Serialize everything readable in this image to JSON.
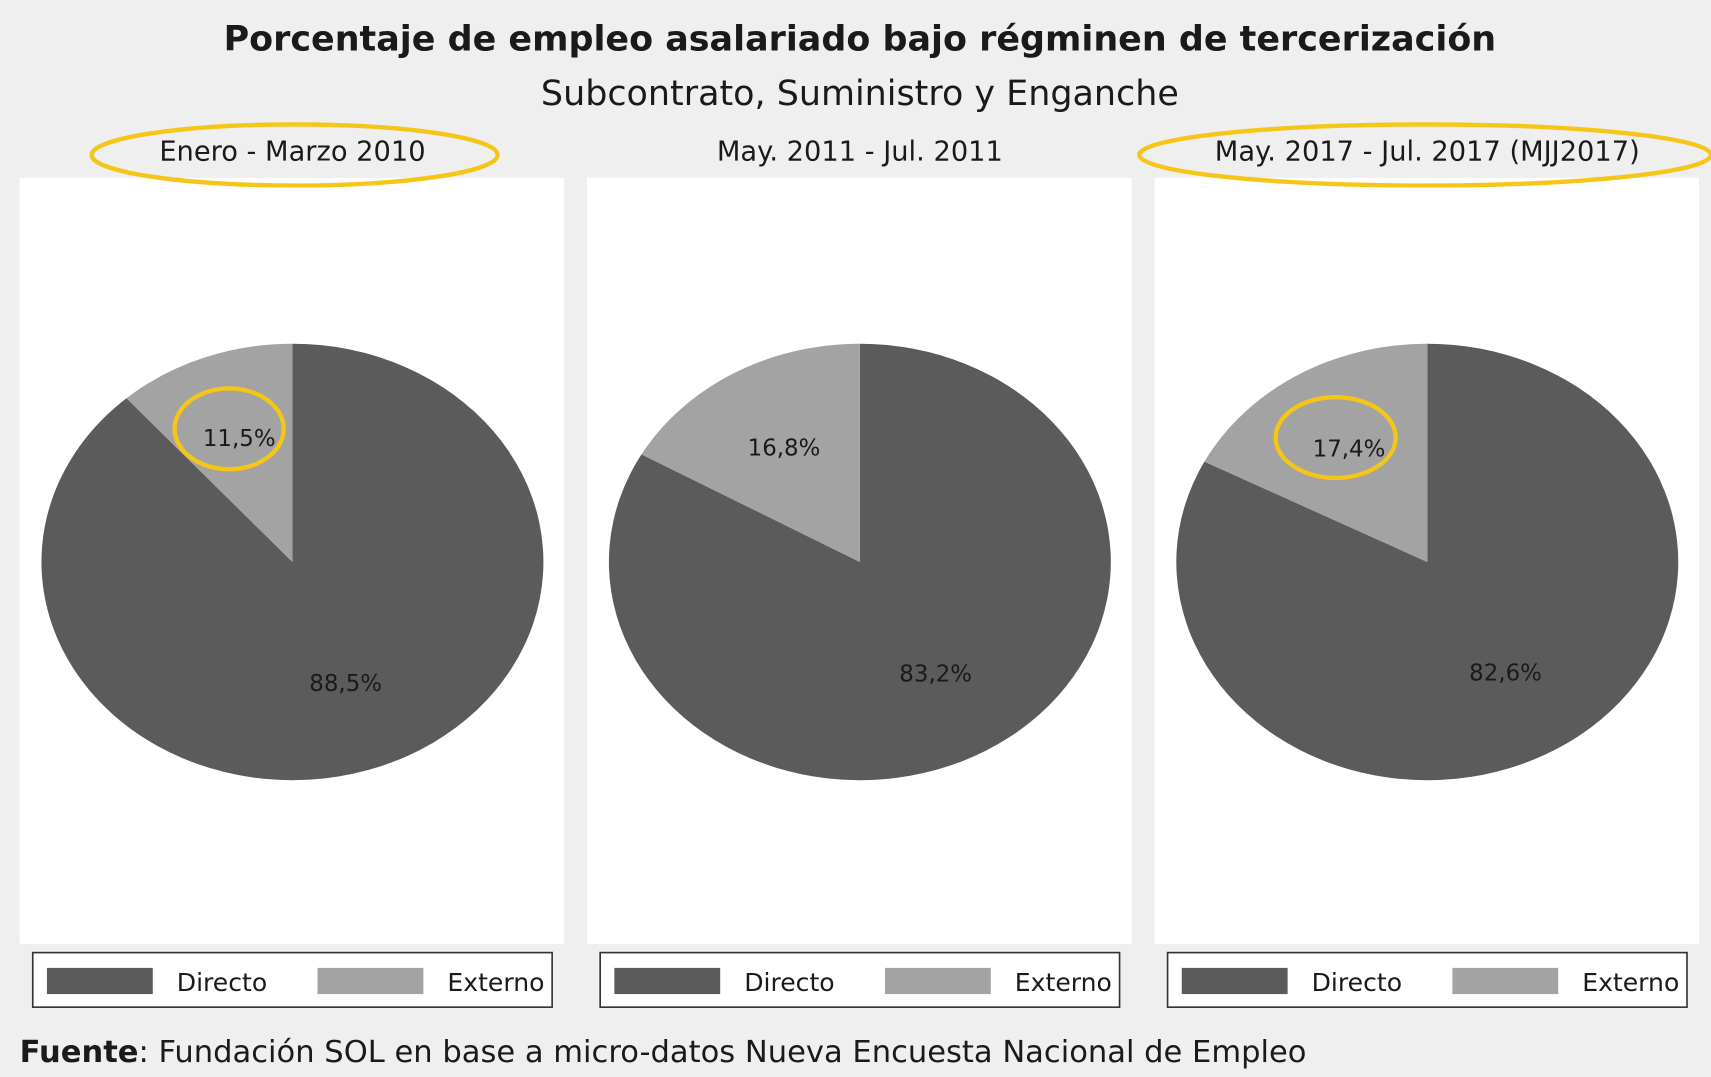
{
  "title": "Porcentaje de empleo asalariado bajo régminen de tercerización",
  "subtitle": "Subcontrato, Suministro y Enganche",
  "chart_data": [
    {
      "type": "pie",
      "title": "Enero - Marzo 2010",
      "categories": [
        "Directo",
        "Externo"
      ],
      "values": [
        88.5,
        11.5
      ],
      "value_labels": [
        "88,5%",
        "11,5%"
      ],
      "colors": [
        "#5b5b5b",
        "#a3a3a3"
      ]
    },
    {
      "type": "pie",
      "title": "May. 2011 - Jul. 2011",
      "categories": [
        "Directo",
        "Externo"
      ],
      "values": [
        83.2,
        16.8
      ],
      "value_labels": [
        "83,2%",
        "16,8%"
      ],
      "colors": [
        "#5b5b5b",
        "#a3a3a3"
      ]
    },
    {
      "type": "pie",
      "title": "May. 2017 - Jul. 2017 (MJJ2017)",
      "categories": [
        "Directo",
        "Externo"
      ],
      "values": [
        82.6,
        17.4
      ],
      "value_labels": [
        "82,6%",
        "17,4%"
      ],
      "colors": [
        "#5b5b5b",
        "#a3a3a3"
      ]
    }
  ],
  "source": {
    "label": "Fuente",
    "text": ": Fundación SOL en base a micro-datos Nueva Encuesta Nacional de Empleo"
  }
}
